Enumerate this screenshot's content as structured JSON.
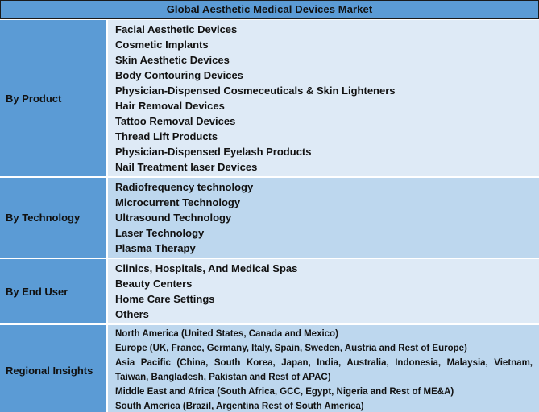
{
  "title": "Global Aesthetic Medical Devices Market",
  "colors": {
    "header_bg": "#5B9BD5",
    "label_bg": "#5B9BD5",
    "row_bg_a": "#BDD7EE",
    "row_bg_b": "#DEEAF6",
    "bottom_bar": "#1F4E79",
    "text": "#111111",
    "separator": "#ffffff"
  },
  "sections": [
    {
      "label": "By Product",
      "items": [
        "Facial Aesthetic Devices",
        "Cosmetic Implants",
        "Skin Aesthetic Devices",
        "Body Contouring Devices",
        "Physician-Dispensed Cosmeceuticals & Skin Lighteners",
        "Hair Removal Devices",
        "Tattoo Removal Devices",
        "Thread Lift Products",
        "Physician-Dispensed Eyelash Products",
        "Nail Treatment laser Devices"
      ]
    },
    {
      "label": "By Technology",
      "items": [
        "Radiofrequency technology",
        "Microcurrent Technology",
        "Ultrasound Technology",
        "Laser Technology",
        "Plasma Therapy"
      ]
    },
    {
      "label": "By End User",
      "items": [
        "Clinics, Hospitals, And Medical Spas",
        "Beauty Centers",
        "Home Care Settings",
        "Others"
      ]
    },
    {
      "label": "Regional Insights",
      "items": [
        "North America (United States, Canada and Mexico)",
        "Europe (UK, France, Germany, Italy, Spain, Sweden, Austria and Rest of Europe)",
        "Asia Pacific (China, South Korea, Japan, India, Australia, Indonesia, Malaysia, Vietnam, Taiwan, Bangladesh, Pakistan and Rest of APAC)",
        "Middle East and Africa (South Africa, GCC, Egypt, Nigeria and Rest of ME&A)",
        "South America (Brazil, Argentina Rest of South America)"
      ]
    }
  ]
}
